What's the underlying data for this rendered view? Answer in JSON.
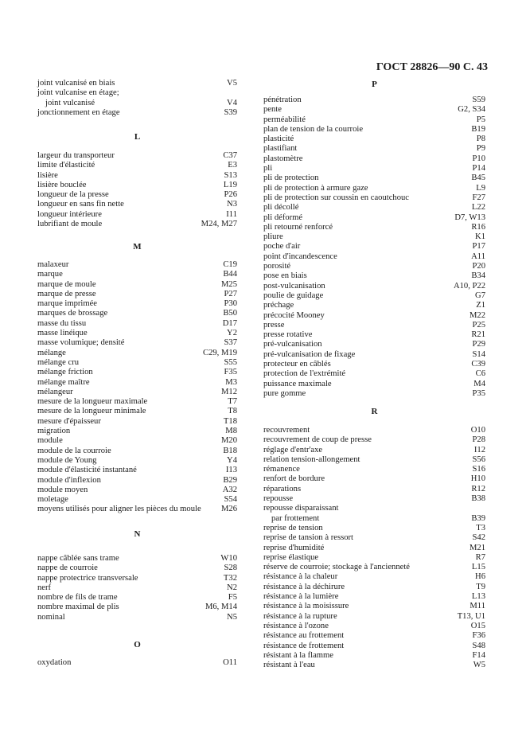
{
  "header": "ГОСТ 28826—90 С. 43",
  "left": [
    {
      "heading": null,
      "entries": [
        {
          "term": "joint vulcanisé en biais",
          "ref": "V5"
        },
        {
          "term": "joint vulcanise en étage;",
          "ref": ""
        },
        {
          "term": "joint vulcanisé",
          "ref": "V4",
          "indent": true
        },
        {
          "term": "jonctionnement en étage",
          "ref": "S39"
        }
      ]
    },
    {
      "heading": "L",
      "entries": [
        {
          "term": "largeur du transporteur",
          "ref": "C37"
        },
        {
          "term": "limite d'élasticité",
          "ref": "E3"
        },
        {
          "term": "lisière",
          "ref": "S13"
        },
        {
          "term": "lisière bouclée",
          "ref": "L19"
        },
        {
          "term": "longueur de la presse",
          "ref": "P26"
        },
        {
          "term": "longueur en sans fin nette",
          "ref": "N3"
        },
        {
          "term": "longueur intérieure",
          "ref": "I11"
        },
        {
          "term": "lubrifiant de moule",
          "ref": "M24, M27"
        }
      ]
    },
    {
      "heading": "M",
      "entries": [
        {
          "term": "malaxeur",
          "ref": "C19"
        },
        {
          "term": "marque",
          "ref": "B44"
        },
        {
          "term": "marque de moule",
          "ref": "M25"
        },
        {
          "term": "marque de presse",
          "ref": "P27"
        },
        {
          "term": "marque imprimée",
          "ref": "P30"
        },
        {
          "term": "marques de brossage",
          "ref": "B50"
        },
        {
          "term": "masse du tissu",
          "ref": "D17"
        },
        {
          "term": "masse linéique",
          "ref": "Y2"
        },
        {
          "term": "masse volumique; densité",
          "ref": "S37"
        },
        {
          "term": "mélange",
          "ref": "C29, M19"
        },
        {
          "term": "mélange cru",
          "ref": "S55"
        },
        {
          "term": "mélange friction",
          "ref": "F35"
        },
        {
          "term": "mélange maître",
          "ref": "M3"
        },
        {
          "term": "mélangeur",
          "ref": "M12"
        },
        {
          "term": "mesure de la longueur maximale",
          "ref": "T7"
        },
        {
          "term": "mesure de la longueur minimale",
          "ref": "T8"
        },
        {
          "term": "mesure d'épaisseur",
          "ref": "T18"
        },
        {
          "term": "migration",
          "ref": "M8"
        },
        {
          "term": "module",
          "ref": "M20"
        },
        {
          "term": "module de la courroie",
          "ref": "B18"
        },
        {
          "term": "module de Young",
          "ref": "Y4"
        },
        {
          "term": "module d'élasticité instantané",
          "ref": "I13"
        },
        {
          "term": "module d'inflexion",
          "ref": "B29"
        },
        {
          "term": "module moyen",
          "ref": "A32"
        },
        {
          "term": "moletage",
          "ref": "S54"
        },
        {
          "term": "moyens utilisés pour aligner les pièces du moule",
          "ref": "M26"
        }
      ]
    },
    {
      "heading": "N",
      "entries": [
        {
          "term": "nappe câblée sans trame",
          "ref": "W10"
        },
        {
          "term": "nappe de courroie",
          "ref": "S28"
        },
        {
          "term": "nappe protectrice transversale",
          "ref": "T32"
        },
        {
          "term": "nerf",
          "ref": "N2"
        },
        {
          "term": "nombre de fils de trame",
          "ref": "F5"
        },
        {
          "term": "nombre maximal de plis",
          "ref": "M6, M14"
        },
        {
          "term": "nominal",
          "ref": "N5"
        }
      ]
    },
    {
      "heading": "O",
      "entries": [
        {
          "term": "oxydation",
          "ref": "O11"
        }
      ]
    }
  ],
  "right": [
    {
      "heading": "P",
      "entries": [
        {
          "term": "pénétration",
          "ref": "S59"
        },
        {
          "term": "pente",
          "ref": "G2, S34"
        },
        {
          "term": "perméabilité",
          "ref": "P5"
        },
        {
          "term": "plan de tension de la courroie",
          "ref": "B19"
        },
        {
          "term": "plasticité",
          "ref": "P8"
        },
        {
          "term": "plastifiant",
          "ref": "P9"
        },
        {
          "term": "plastomètre",
          "ref": "P10"
        },
        {
          "term": "pli",
          "ref": "P14"
        },
        {
          "term": "pli de protection",
          "ref": "B45"
        },
        {
          "term": "pli de protection à armure gaze",
          "ref": "L9"
        },
        {
          "term": "pli de protection sur coussin en caoutchouc",
          "ref": "F27"
        },
        {
          "term": "pli décollé",
          "ref": "L22"
        },
        {
          "term": "pli déformé",
          "ref": "D7, W13"
        },
        {
          "term": "pli retourné renforcé",
          "ref": "R16"
        },
        {
          "term": "pliure",
          "ref": "K1"
        },
        {
          "term": "poche d'air",
          "ref": "P17"
        },
        {
          "term": "point d'incandescence",
          "ref": "A11"
        },
        {
          "term": "porosité",
          "ref": "P20"
        },
        {
          "term": "pose en biais",
          "ref": "B34"
        },
        {
          "term": "post-vulcanisation",
          "ref": "A10, P22"
        },
        {
          "term": "poulie de guidage",
          "ref": "G7"
        },
        {
          "term": "préchage",
          "ref": "Z1"
        },
        {
          "term": "précocité Mooney",
          "ref": "M22"
        },
        {
          "term": "presse",
          "ref": "P25"
        },
        {
          "term": "presse rotative",
          "ref": "R21"
        },
        {
          "term": "pré-vulcanisation",
          "ref": "P29"
        },
        {
          "term": "pré-vulcanisation de fixage",
          "ref": "S14"
        },
        {
          "term": "protecteur en câblés",
          "ref": "C39"
        },
        {
          "term": "protection de l'extrémité",
          "ref": "C6"
        },
        {
          "term": "puissance maximale",
          "ref": "M4"
        },
        {
          "term": "pure gomme",
          "ref": "P35"
        }
      ]
    },
    {
      "heading": "R",
      "entries": [
        {
          "term": "recouvrement",
          "ref": "O10"
        },
        {
          "term": "recouvrement de coup de presse",
          "ref": "P28"
        },
        {
          "term": "réglage d'entr'axe",
          "ref": "I12"
        },
        {
          "term": "relation tension-allongement",
          "ref": "S56"
        },
        {
          "term": "rémanence",
          "ref": "S16"
        },
        {
          "term": "renfort de bordure",
          "ref": "H10"
        },
        {
          "term": "réparations",
          "ref": "R12"
        },
        {
          "term": "repousse",
          "ref": "B38"
        },
        {
          "term": "repousse disparaissant",
          "ref": ""
        },
        {
          "term": "par frottement",
          "ref": "B39",
          "indent": true
        },
        {
          "term": "reprise de tension",
          "ref": "T3"
        },
        {
          "term": "reprise de tansion à ressort",
          "ref": "S42"
        },
        {
          "term": "reprise d'humidité",
          "ref": "M21"
        },
        {
          "term": "reprise élastique",
          "ref": "R7"
        },
        {
          "term": "réserve de courroie; stockage à l'ancienneté",
          "ref": "L15"
        },
        {
          "term": "résistance à la chaleur",
          "ref": "H6"
        },
        {
          "term": "résistance à la déchirure",
          "ref": "T9"
        },
        {
          "term": "résistance à la lumière",
          "ref": "L13"
        },
        {
          "term": "résistance à la moisissure",
          "ref": "M11"
        },
        {
          "term": "résistance à la rupture",
          "ref": "T13, U1"
        },
        {
          "term": "résistance à l'ozone",
          "ref": "O15"
        },
        {
          "term": "résistance au frottement",
          "ref": "F36"
        },
        {
          "term": "résistance de frottement",
          "ref": "S48"
        },
        {
          "term": "résistant à la flamme",
          "ref": "F14"
        },
        {
          "term": "résistant à l'eau",
          "ref": "W5"
        }
      ]
    }
  ]
}
